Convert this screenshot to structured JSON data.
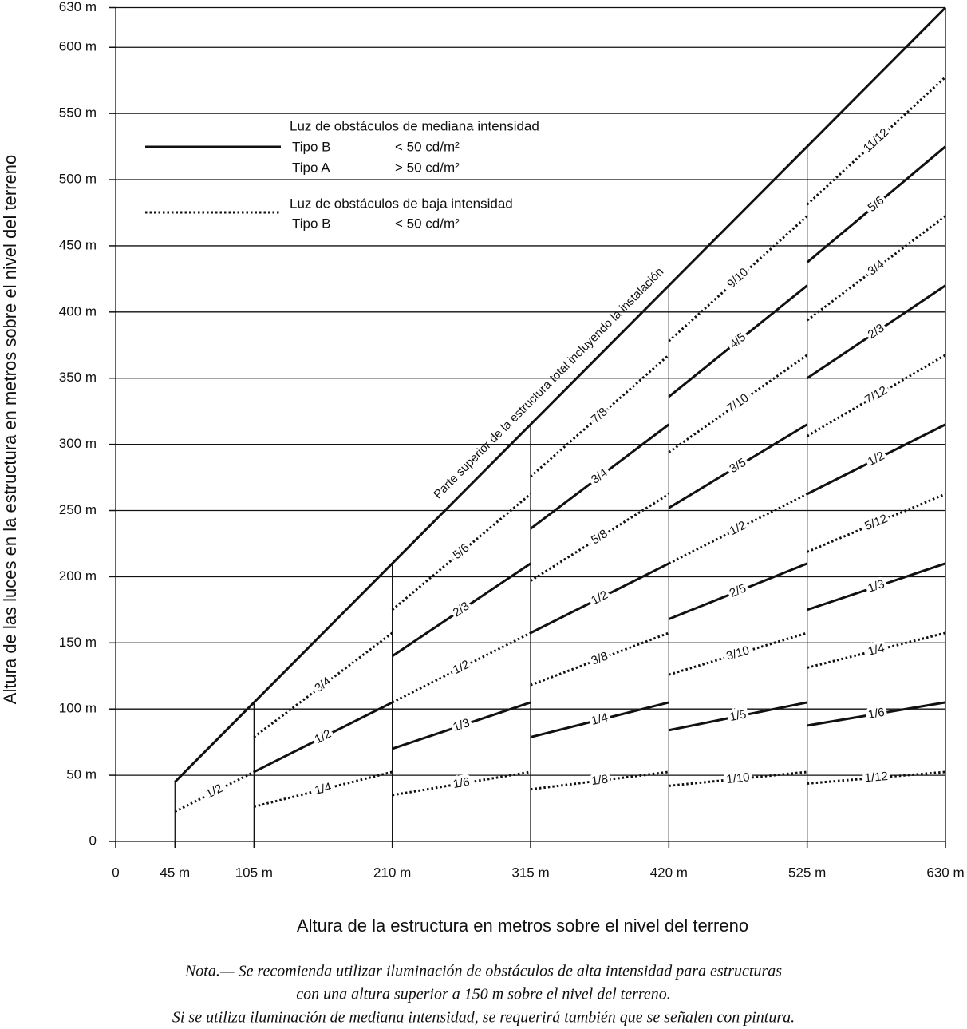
{
  "chart_data": {
    "type": "line",
    "x_label": "Altura de la estructura en metros sobre el nivel del terreno",
    "y_label": "Altura de las luces en la estructura en metros sobre el nivel del terreno",
    "xlim": [
      0,
      630
    ],
    "ylim": [
      0,
      630
    ],
    "xticks": [
      0,
      {
        "value": 45,
        "label": "45 m"
      },
      {
        "value": 105,
        "label": "105 m"
      },
      {
        "value": 210,
        "label": "210 m"
      },
      {
        "value": 315,
        "label": "315 m"
      },
      {
        "value": 420,
        "label": "420 m"
      },
      {
        "value": 525,
        "label": "525 m"
      },
      {
        "value": 630,
        "label": "630 m"
      }
    ],
    "yticks": [
      0,
      {
        "value": 50,
        "label": "50 m"
      },
      {
        "value": 100,
        "label": "100 m"
      },
      {
        "value": 150,
        "label": "150 m"
      },
      {
        "value": 200,
        "label": "200 m"
      },
      {
        "value": 250,
        "label": "250 m"
      },
      {
        "value": 300,
        "label": "300 m"
      },
      {
        "value": 350,
        "label": "350 m"
      },
      {
        "value": 400,
        "label": "400 m"
      },
      {
        "value": 450,
        "label": "450 m"
      },
      {
        "value": 500,
        "label": "500 m"
      },
      {
        "value": 550,
        "label": "550 m"
      },
      {
        "value": 600,
        "label": "600 m"
      },
      {
        "value": 630,
        "label": "630 m"
      }
    ],
    "grid": true,
    "color": "#111111",
    "legend": [
      {
        "title": "Luz de obstáculos de mediana intensidad",
        "style": "solid",
        "entries": [
          [
            "Tipo B",
            "<  50  cd/m²"
          ],
          [
            "Tipo A",
            ">  50  cd/m²"
          ]
        ]
      },
      {
        "title": "Luz de obstáculos de baja intensidad",
        "style": "dotted",
        "entries": [
          [
            "Tipo B",
            "<  50  cd/m²"
          ]
        ]
      }
    ],
    "series": [
      {
        "name": "Parte superior de la estructura total incluyendo la instalación",
        "style": "solid",
        "x": [
          45,
          630
        ],
        "values": [
          45,
          630
        ]
      },
      {
        "name": "1/2",
        "style": "dotted",
        "x": [
          45,
          105
        ],
        "values": [
          22.5,
          52.5
        ]
      },
      {
        "name": "3/4",
        "style": "dotted",
        "x": [
          105,
          210
        ],
        "values": [
          78.75,
          157.5
        ]
      },
      {
        "name": "1/2",
        "style": "solid",
        "x": [
          105,
          210
        ],
        "values": [
          52.5,
          105
        ]
      },
      {
        "name": "1/4",
        "style": "dotted",
        "x": [
          105,
          210
        ],
        "values": [
          26.25,
          52.5
        ]
      },
      {
        "name": "5/6",
        "style": "dotted",
        "x": [
          210,
          315
        ],
        "values": [
          175,
          262.5
        ]
      },
      {
        "name": "2/3",
        "style": "solid",
        "x": [
          210,
          315
        ],
        "values": [
          140,
          210
        ]
      },
      {
        "name": "1/2",
        "style": "dotted",
        "x": [
          210,
          315
        ],
        "values": [
          105,
          157.5
        ]
      },
      {
        "name": "1/3",
        "style": "solid",
        "x": [
          210,
          315
        ],
        "values": [
          70,
          105
        ]
      },
      {
        "name": "1/6",
        "style": "dotted",
        "x": [
          210,
          315
        ],
        "values": [
          35,
          52.5
        ]
      },
      {
        "name": "7/8",
        "style": "dotted",
        "x": [
          315,
          420
        ],
        "values": [
          275.625,
          367.5
        ]
      },
      {
        "name": "3/4",
        "style": "solid",
        "x": [
          315,
          420
        ],
        "values": [
          236.25,
          315
        ]
      },
      {
        "name": "5/8",
        "style": "dotted",
        "x": [
          315,
          420
        ],
        "values": [
          196.875,
          262.5
        ]
      },
      {
        "name": "1/2",
        "style": "solid",
        "x": [
          315,
          420
        ],
        "values": [
          157.5,
          210
        ]
      },
      {
        "name": "3/8",
        "style": "dotted",
        "x": [
          315,
          420
        ],
        "values": [
          118.125,
          157.5
        ]
      },
      {
        "name": "1/4",
        "style": "solid",
        "x": [
          315,
          420
        ],
        "values": [
          78.75,
          105
        ]
      },
      {
        "name": "1/8",
        "style": "dotted",
        "x": [
          315,
          420
        ],
        "values": [
          39.375,
          52.5
        ]
      },
      {
        "name": "9/10",
        "style": "dotted",
        "x": [
          420,
          525
        ],
        "values": [
          378,
          472.5
        ]
      },
      {
        "name": "4/5",
        "style": "solid",
        "x": [
          420,
          525
        ],
        "values": [
          336,
          420
        ]
      },
      {
        "name": "7/10",
        "style": "dotted",
        "x": [
          420,
          525
        ],
        "values": [
          294,
          367.5
        ]
      },
      {
        "name": "3/5",
        "style": "solid",
        "x": [
          420,
          525
        ],
        "values": [
          252,
          315
        ]
      },
      {
        "name": "1/2",
        "style": "dotted",
        "x": [
          420,
          525
        ],
        "values": [
          210,
          262.5
        ]
      },
      {
        "name": "2/5",
        "style": "solid",
        "x": [
          420,
          525
        ],
        "values": [
          168,
          210
        ]
      },
      {
        "name": "3/10",
        "style": "dotted",
        "x": [
          420,
          525
        ],
        "values": [
          126,
          157.5
        ]
      },
      {
        "name": "1/5",
        "style": "solid",
        "x": [
          420,
          525
        ],
        "values": [
          84,
          105
        ]
      },
      {
        "name": "1/10",
        "style": "dotted",
        "x": [
          420,
          525
        ],
        "values": [
          42,
          52.5
        ]
      },
      {
        "name": "11/12",
        "style": "dotted",
        "x": [
          525,
          630
        ],
        "values": [
          481.25,
          577.5
        ]
      },
      {
        "name": "5/6",
        "style": "solid",
        "x": [
          525,
          630
        ],
        "values": [
          437.5,
          525
        ]
      },
      {
        "name": "3/4",
        "style": "dotted",
        "x": [
          525,
          630
        ],
        "values": [
          393.75,
          472.5
        ]
      },
      {
        "name": "2/3",
        "style": "solid",
        "x": [
          525,
          630
        ],
        "values": [
          350,
          420
        ]
      },
      {
        "name": "7/12",
        "style": "dotted",
        "x": [
          525,
          630
        ],
        "values": [
          306.25,
          367.5
        ]
      },
      {
        "name": "1/2",
        "style": "solid",
        "x": [
          525,
          630
        ],
        "values": [
          262.5,
          315
        ]
      },
      {
        "name": "5/12",
        "style": "dotted",
        "x": [
          525,
          630
        ],
        "values": [
          218.75,
          262.5
        ]
      },
      {
        "name": "1/3",
        "style": "solid",
        "x": [
          525,
          630
        ],
        "values": [
          175,
          210
        ]
      },
      {
        "name": "1/4",
        "style": "dotted",
        "x": [
          525,
          630
        ],
        "values": [
          131.25,
          157.5
        ]
      },
      {
        "name": "1/6",
        "style": "solid",
        "x": [
          525,
          630
        ],
        "values": [
          87.5,
          105
        ]
      },
      {
        "name": "1/12",
        "style": "dotted",
        "x": [
          525,
          630
        ],
        "values": [
          43.75,
          52.5
        ]
      }
    ],
    "note": [
      "Nota.— Se recomienda utilizar iluminación de obstáculos de alta intensidad para estructuras",
      "con una altura superior a 150 m sobre el nivel del terreno.",
      "Si se utiliza iluminación de mediana intensidad, se requerirá también que se señalen con pintura."
    ]
  }
}
